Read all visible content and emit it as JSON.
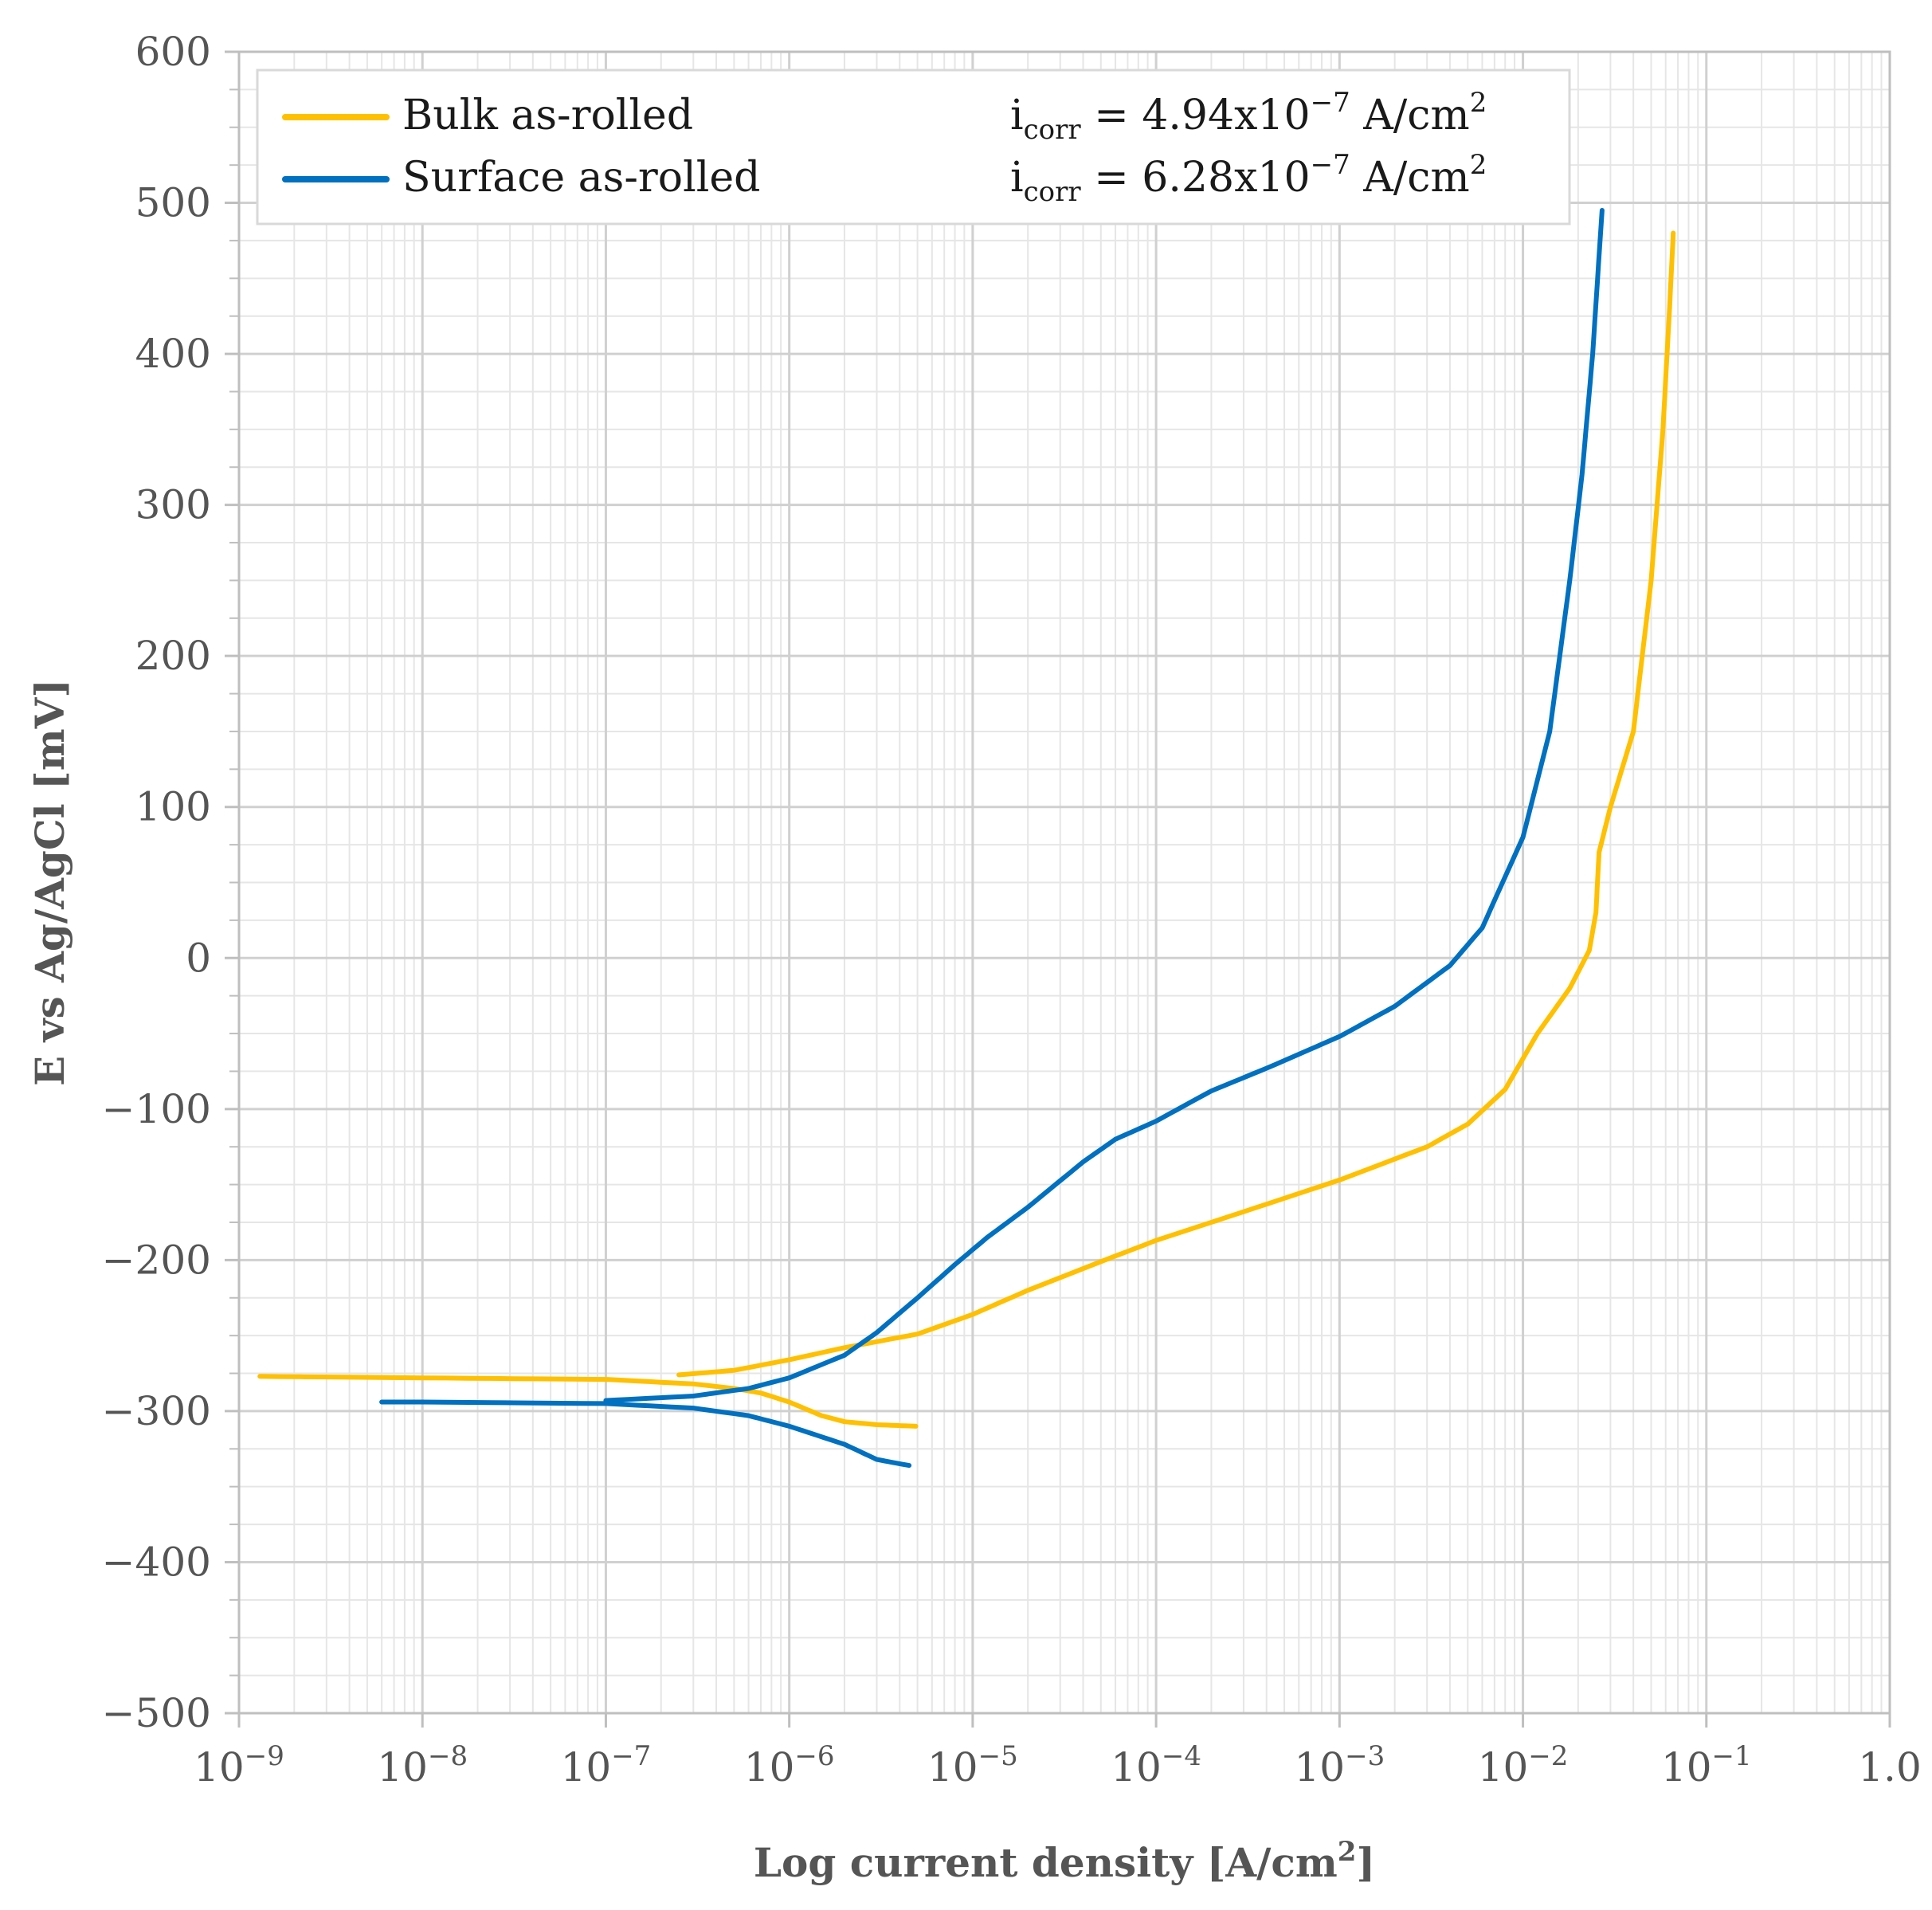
{
  "chart_data": {
    "type": "line",
    "xlabel": "Log current density [A/cm",
    "xlabel_sup": "2",
    "xlabel_end": "]",
    "ylabel": "E vs Ag/AgCl [mV]",
    "x_scale": "log",
    "xlim": [
      1e-09,
      1.0
    ],
    "ylim": [
      -500,
      600
    ],
    "grid": true,
    "legend_position": "top-left",
    "y_ticks": [
      600,
      500,
      400,
      300,
      200,
      100,
      0,
      -100,
      -200,
      -300,
      -400,
      -500
    ],
    "y_tick_labels": [
      "600",
      "500",
      "400",
      "300",
      "200",
      "100",
      "0",
      "−100",
      "−200",
      "−300",
      "−400",
      "−500"
    ],
    "x_ticks": [
      1e-09,
      1e-08,
      1e-07,
      1e-06,
      1e-05,
      0.0001,
      0.001,
      0.01,
      0.1,
      1.0
    ],
    "x_tick_labels": [
      {
        "base": "10",
        "exp": "−9"
      },
      {
        "base": "10",
        "exp": "−8"
      },
      {
        "base": "10",
        "exp": "−7"
      },
      {
        "base": "10",
        "exp": "−6"
      },
      {
        "base": "10",
        "exp": "−5"
      },
      {
        "base": "10",
        "exp": "−4"
      },
      {
        "base": "10",
        "exp": "−3"
      },
      {
        "base": "10",
        "exp": "−2"
      },
      {
        "base": "10",
        "exp": "−1"
      },
      {
        "base": "1.0",
        "exp": ""
      }
    ],
    "series": [
      {
        "name": "Bulk as-rolled",
        "color": "#FFC000",
        "icorr_label": "i",
        "icorr_sub": "corr",
        "icorr_value": " = 4.94x10",
        "icorr_exp": "−7",
        "icorr_unit": " A/cm",
        "icorr_unit_exp": "2",
        "cathodic": {
          "x": [
            1.3e-09,
            1e-08,
            1e-07,
            3e-07,
            5e-07,
            7e-07,
            1e-06,
            1.5e-06,
            2e-06,
            3e-06,
            4.9e-06
          ],
          "y": [
            -277,
            -278,
            -279,
            -282,
            -285,
            -288,
            -294,
            -303,
            -307,
            -309,
            -310
          ]
        },
        "anodic": {
          "x": [
            2.5e-07,
            5e-07,
            1e-06,
            2e-06,
            5e-06,
            1e-05,
            2e-05,
            5e-05,
            0.0001,
            0.0003,
            0.001,
            0.003,
            0.005,
            0.008,
            0.012,
            0.018,
            0.023,
            0.025,
            0.026,
            0.03,
            0.04,
            0.05,
            0.058,
            0.063,
            0.066
          ],
          "y": [
            -276,
            -273,
            -266,
            -258,
            -249,
            -236,
            -220,
            -201,
            -187,
            -168,
            -147,
            -125,
            -110,
            -87,
            -50,
            -20,
            5,
            30,
            70,
            100,
            150,
            250,
            350,
            430,
            480
          ]
        }
      },
      {
        "name": "Surface as-rolled",
        "color": "#0070C0",
        "icorr_label": "i",
        "icorr_sub": "corr",
        "icorr_value": " = 6.28x10",
        "icorr_exp": "−7",
        "icorr_unit": " A/cm",
        "icorr_unit_exp": "2",
        "cathodic": {
          "x": [
            6e-09,
            1e-08,
            1e-07,
            3e-07,
            6e-07,
            1e-06,
            2e-06,
            3e-06,
            4.5e-06
          ],
          "y": [
            -294,
            -294,
            -295,
            -298,
            -303,
            -310,
            -322,
            -332,
            -336
          ]
        },
        "anodic": {
          "x": [
            1e-07,
            3e-07,
            6e-07,
            1e-06,
            2e-06,
            3e-06,
            5e-06,
            8e-06,
            1.2e-05,
            2e-05,
            4e-05,
            6e-05,
            0.0001,
            0.0002,
            0.0004,
            0.001,
            0.002,
            0.004,
            0.006,
            0.01,
            0.014,
            0.018,
            0.021,
            0.024,
            0.027
          ],
          "y": [
            -293,
            -290,
            -285,
            -278,
            -263,
            -248,
            -225,
            -203,
            -185,
            -165,
            -135,
            -120,
            -108,
            -88,
            -73,
            -52,
            -32,
            -5,
            20,
            80,
            150,
            250,
            320,
            400,
            495
          ]
        }
      }
    ]
  }
}
